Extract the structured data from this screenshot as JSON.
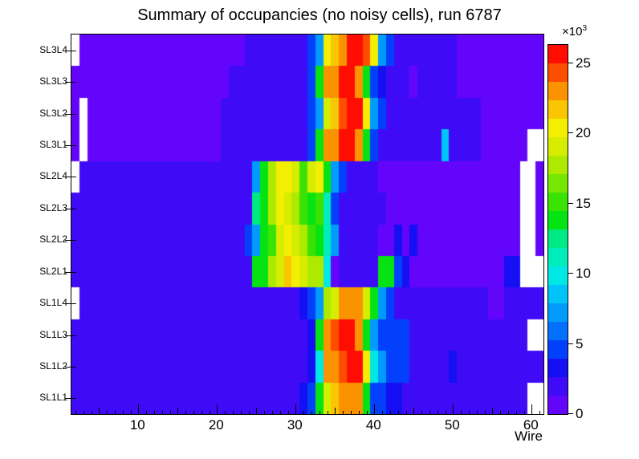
{
  "title": "Summary of occupancies (no noisy cells), run 6787",
  "x_axis": {
    "label": "Wire",
    "major_ticks": [
      10,
      20,
      30,
      40,
      50,
      60
    ],
    "min": 1.5,
    "max": 61.5
  },
  "y_axis": {
    "labels_top_to_bottom": [
      "SL3L4",
      "SL3L3",
      "SL3L2",
      "SL3L1",
      "SL2L4",
      "SL2L3",
      "SL2L2",
      "SL2L1",
      "SL1L4",
      "SL1L3",
      "SL1L2",
      "SL1L1"
    ]
  },
  "colorbar": {
    "exp_base": "×10",
    "exp_power": "3",
    "ticks": [
      0,
      5,
      10,
      15,
      20,
      25
    ],
    "max_value_thousands": 26.3,
    "palette_low_to_high": [
      "#6405fb",
      "#3f0bf7",
      "#150ff4",
      "#0340fb",
      "#0370fc",
      "#019bfd",
      "#00c4f8",
      "#00e8e4",
      "#00edbb",
      "#00ea84",
      "#06e312",
      "#3ae303",
      "#76e700",
      "#aeea00",
      "#d7ed00",
      "#f4ef02",
      "#f9c601",
      "#fb9301",
      "#fd4e00",
      "#fe0d00"
    ]
  },
  "chart_data": {
    "type": "heatmap",
    "title": "Summary of occupancies (no noisy cells), run 6787",
    "xlabel": "Wire",
    "value_unit": "counts (thousands); null = empty bin (white)",
    "zmax_thousands": 26.3,
    "wire_first": 2,
    "wires_per_row": 60,
    "rows_top_to_bottom": [
      "SL3L4",
      "SL3L3",
      "SL3L2",
      "SL3L1",
      "SL2L4",
      "SL2L3",
      "SL2L2",
      "SL2L1",
      "SL1L4",
      "SL1L3",
      "SL1L2",
      "SL1L1"
    ],
    "values": [
      [
        null,
        0.7,
        0.7,
        0.7,
        0.7,
        0.7,
        0.7,
        0.7,
        0.7,
        0.7,
        0.7,
        0.7,
        0.7,
        0.7,
        0.7,
        0.7,
        0.7,
        0.7,
        0.7,
        0.7,
        0.7,
        0.7,
        2,
        2,
        2,
        2,
        2,
        2,
        2,
        2,
        4.6,
        7.2,
        20.4,
        21.7,
        23,
        25.6,
        25.6,
        24.3,
        20.4,
        7.2,
        4.6,
        2,
        2,
        2,
        2,
        2,
        2,
        2,
        2,
        0.7,
        0.7,
        0.7,
        0.7,
        0.7,
        0.7,
        0.7,
        0.7,
        0.7,
        0.7,
        0.7
      ],
      [
        0.7,
        0.7,
        0.7,
        0.7,
        0.7,
        0.7,
        0.7,
        0.7,
        0.7,
        0.7,
        0.7,
        0.7,
        0.7,
        0.7,
        0.7,
        0.7,
        0.7,
        0.7,
        0.7,
        0.7,
        2,
        2,
        2,
        2,
        2,
        2,
        2,
        2,
        2,
        2,
        4.6,
        13.8,
        23,
        23,
        25.6,
        25.6,
        23,
        13.8,
        4.6,
        3.3,
        2,
        2,
        2,
        0.7,
        2,
        2,
        2,
        2,
        2,
        0.7,
        0.7,
        0.7,
        0.7,
        0.7,
        0.7,
        0.7,
        0.7,
        0.7,
        0.7,
        0.7
      ],
      [
        0.7,
        null,
        0.7,
        0.7,
        0.7,
        0.7,
        0.7,
        0.7,
        0.7,
        0.7,
        0.7,
        0.7,
        0.7,
        0.7,
        0.7,
        0.7,
        0.7,
        0.7,
        0.7,
        2,
        2,
        2,
        2,
        2,
        2,
        2,
        2,
        2,
        2,
        2,
        4.6,
        7.2,
        19.1,
        21.7,
        24.3,
        25.6,
        25.6,
        20.4,
        7.2,
        4.6,
        2,
        2,
        2,
        2,
        2,
        2,
        2,
        2,
        2,
        2,
        2,
        2,
        0.7,
        0.7,
        0.7,
        0.7,
        0.7,
        0.7,
        0.7,
        0.7
      ],
      [
        0.7,
        null,
        0.7,
        0.7,
        0.7,
        0.7,
        0.7,
        0.7,
        0.7,
        0.7,
        0.7,
        0.7,
        0.7,
        0.7,
        0.7,
        0.7,
        0.7,
        0.7,
        0.7,
        2,
        2,
        2,
        2,
        2,
        2,
        2,
        2,
        2,
        2,
        2,
        4.6,
        13.8,
        23,
        23,
        25.6,
        25.6,
        23,
        13.8,
        4.6,
        2,
        2,
        2,
        2,
        2,
        2,
        2,
        2,
        8.5,
        2,
        2,
        2,
        2,
        0.7,
        0.7,
        0.7,
        0.7,
        0.7,
        0.7,
        null,
        null
      ],
      [
        null,
        2,
        2,
        2,
        2,
        2,
        2,
        2,
        2,
        2,
        2,
        2,
        2,
        2,
        2,
        2,
        2,
        2,
        2,
        2,
        2,
        2,
        2,
        7.2,
        13.8,
        17.8,
        20.4,
        20.4,
        19.1,
        15.1,
        19.1,
        20.4,
        13.8,
        7.2,
        4.6,
        2,
        2,
        2,
        2,
        0.7,
        0.7,
        0.7,
        0.7,
        0.7,
        0.7,
        0.7,
        0.7,
        0.7,
        0.7,
        0.7,
        0.7,
        0.7,
        0.7,
        0.7,
        0.7,
        0.7,
        0.7,
        null,
        null,
        0.7
      ],
      [
        2,
        2,
        2,
        2,
        2,
        2,
        2,
        2,
        2,
        2,
        2,
        2,
        2,
        2,
        2,
        2,
        2,
        2,
        2,
        2,
        2,
        2,
        2,
        12.5,
        13.8,
        17.8,
        20.4,
        19.1,
        17.8,
        15.1,
        13.8,
        15.1,
        11.2,
        4.6,
        2,
        2,
        2,
        2,
        2,
        2,
        0.7,
        0.7,
        0.7,
        0.7,
        0.7,
        0.7,
        0.7,
        0.7,
        0.7,
        0.7,
        0.7,
        0.7,
        0.7,
        0.7,
        0.7,
        0.7,
        0.7,
        null,
        null,
        0.7
      ],
      [
        2,
        2,
        2,
        2,
        2,
        2,
        2,
        2,
        2,
        2,
        2,
        2,
        2,
        2,
        2,
        2,
        2,
        2,
        2,
        2,
        2,
        2,
        4.6,
        7.2,
        13.8,
        15.1,
        19.1,
        20.4,
        19.1,
        17.8,
        15.1,
        13.8,
        11.2,
        7.2,
        2,
        2,
        2,
        2,
        2,
        0.7,
        0.7,
        3.3,
        0.7,
        3.3,
        0.7,
        0.7,
        0.7,
        0.7,
        0.7,
        0.7,
        0.7,
        0.7,
        0.7,
        0.7,
        0.7,
        0.7,
        0.7,
        null,
        null,
        0.7
      ],
      [
        2,
        2,
        2,
        2,
        2,
        2,
        2,
        2,
        2,
        2,
        2,
        2,
        2,
        2,
        2,
        2,
        2,
        2,
        2,
        2,
        2,
        2,
        2,
        13.8,
        13.8,
        17.8,
        19.1,
        21.7,
        20.4,
        19.1,
        17.8,
        17.8,
        9.9,
        0.7,
        2,
        2,
        2,
        2,
        2,
        13.8,
        13.8,
        4.6,
        3.3,
        0.7,
        0.7,
        0.7,
        0.7,
        0.7,
        0.7,
        0.7,
        0.7,
        0.7,
        0.7,
        0.7,
        0.7,
        3.3,
        3.3,
        null,
        null,
        null
      ],
      [
        null,
        2,
        2,
        2,
        2,
        2,
        2,
        2,
        2,
        2,
        2,
        2,
        2,
        2,
        2,
        2,
        2,
        2,
        2,
        2,
        2,
        2,
        2,
        2,
        2,
        2,
        2,
        2,
        2,
        3.3,
        4.6,
        7.2,
        17.8,
        19.1,
        23,
        23,
        23,
        19.1,
        13.8,
        7.2,
        4.6,
        2,
        2,
        2,
        2,
        2,
        2,
        2,
        2,
        2,
        2,
        2,
        2,
        0.7,
        0.7,
        2,
        2,
        2,
        2,
        2
      ],
      [
        2,
        2,
        2,
        2,
        2,
        2,
        2,
        2,
        2,
        2,
        2,
        2,
        2,
        2,
        2,
        2,
        2,
        2,
        2,
        2,
        2,
        2,
        2,
        2,
        2,
        2,
        2,
        2,
        2,
        2,
        3.3,
        13.8,
        23,
        24.3,
        25.6,
        25.6,
        23,
        13.8,
        7.2,
        4.6,
        4.6,
        4.6,
        4.6,
        2,
        2,
        2,
        2,
        2,
        2,
        2,
        2,
        2,
        2,
        2,
        2,
        2,
        2,
        2,
        null,
        null
      ],
      [
        2,
        2,
        2,
        2,
        2,
        2,
        2,
        2,
        2,
        2,
        2,
        2,
        2,
        2,
        2,
        2,
        2,
        2,
        2,
        2,
        2,
        2,
        2,
        2,
        2,
        2,
        2,
        2,
        2,
        2,
        3.3,
        9.9,
        23,
        23,
        24.3,
        25.6,
        25.6,
        20.4,
        9.9,
        7.2,
        4.6,
        4.6,
        4.6,
        2,
        2,
        2,
        2,
        2,
        3.3,
        2,
        2,
        2,
        2,
        2,
        2,
        2,
        2,
        2,
        2,
        2
      ],
      [
        2,
        2,
        2,
        2,
        2,
        2,
        2,
        2,
        2,
        2,
        2,
        2,
        2,
        2,
        2,
        2,
        2,
        2,
        2,
        2,
        2,
        2,
        2,
        2,
        2,
        2,
        2,
        2,
        2,
        3.3,
        4.6,
        13.8,
        19.1,
        21.7,
        23,
        23,
        23,
        13.8,
        4.6,
        4.6,
        3.3,
        3.3,
        2,
        2,
        2,
        2,
        2,
        2,
        2,
        2,
        2,
        2,
        2,
        2,
        2,
        2,
        2,
        2,
        null,
        null
      ]
    ]
  }
}
